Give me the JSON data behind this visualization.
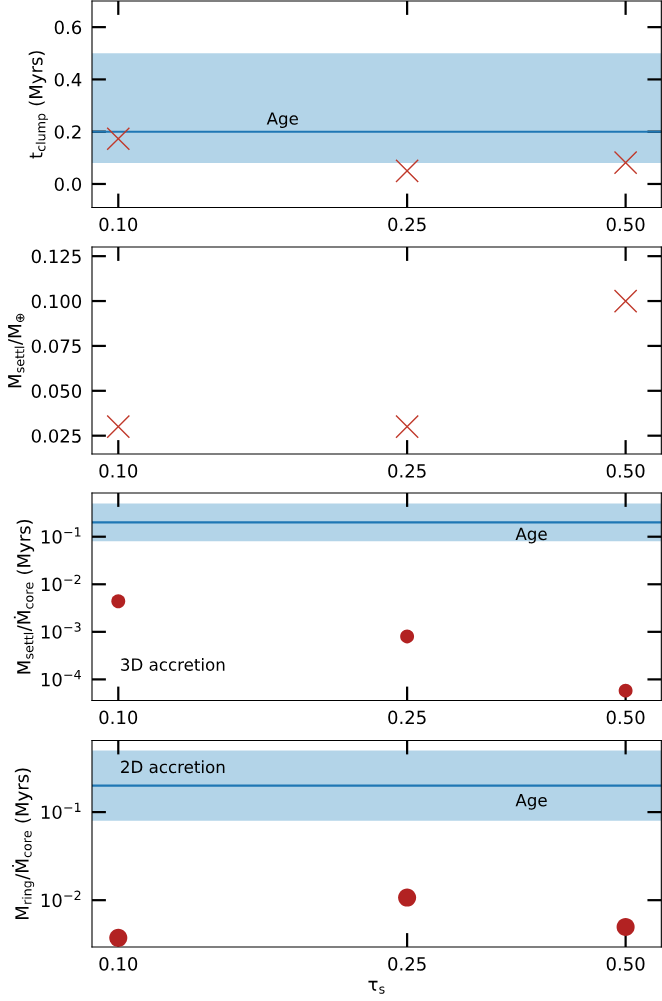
{
  "chart_data": [
    {
      "type": "scatter",
      "ylabel": "t$_{clump}$ (Myrs)",
      "log": "x",
      "marker": "cross",
      "legend": false,
      "grid": false,
      "x": [
        0.1,
        0.25,
        0.5
      ],
      "series": [
        {
          "color": "#c0392b",
          "values": [
            0.173,
            0.05,
            0.082
          ]
        }
      ],
      "xlim": [
        0.092,
        0.56
      ],
      "xticks": [
        {
          "value": 0.1,
          "label": "0.10"
        },
        {
          "value": 0.25,
          "label": "0.25"
        },
        {
          "value": 0.5,
          "label": "0.50"
        }
      ],
      "ylim": [
        -0.09,
        0.7
      ],
      "yticks": [
        {
          "value": 0.0,
          "label": "0.0"
        },
        {
          "value": 0.2,
          "label": "0.2"
        },
        {
          "value": 0.4,
          "label": "0.4"
        },
        {
          "value": 0.6,
          "label": "0.6"
        }
      ],
      "ref_lines": [
        {
          "axis": "y",
          "value": 0.2,
          "color": "#1f77b4",
          "label": "Age"
        }
      ],
      "bands": [
        {
          "axis": "y",
          "from": 0.08,
          "to": 0.5,
          "color": "#b3d4e8"
        }
      ]
    },
    {
      "type": "scatter",
      "ylabel": "M$_{settl}$/M$_{⊕}$",
      "log": "x",
      "marker": "cross",
      "legend": false,
      "grid": false,
      "x": [
        0.1,
        0.25,
        0.5
      ],
      "series": [
        {
          "color": "#c0392b",
          "values": [
            0.03,
            0.03,
            0.1
          ]
        }
      ],
      "xlim": [
        0.092,
        0.56
      ],
      "xticks": [
        {
          "value": 0.1,
          "label": "0.10"
        },
        {
          "value": 0.25,
          "label": "0.25"
        },
        {
          "value": 0.5,
          "label": "0.50"
        }
      ],
      "ylim": [
        0.0148,
        0.1301
      ],
      "yticks": [
        0.025,
        {
          "value": 0.05,
          "label": "0.050"
        },
        0.075,
        {
          "value": 0.1,
          "label": "0.100"
        },
        0.125
      ]
    },
    {
      "type": "scatter",
      "ylabel": "M$_{settl}$/Ṁ$_{core}$ (Myrs)",
      "log": "xy",
      "marker": "circle",
      "legend": false,
      "grid": false,
      "x": [
        0.1,
        0.25,
        0.5
      ],
      "series": [
        {
          "color": "#b22222",
          "values": [
            0.0044,
            0.0008,
            5.8e-05
          ]
        }
      ],
      "xlim": [
        0.092,
        0.56
      ],
      "xticks": [
        {
          "value": 0.1,
          "label": "0.10"
        },
        {
          "value": 0.25,
          "label": "0.25"
        },
        {
          "value": 0.5,
          "label": "0.50"
        }
      ],
      "ylim": [
        3.6e-05,
        0.83
      ],
      "yticks": [
        {
          "value": 0.0001,
          "label": "10$^{−4}$"
        },
        {
          "value": 0.001,
          "label": "10$^{−3}$"
        },
        {
          "value": 0.01,
          "label": "10$^{−2}$"
        },
        {
          "value": 0.1,
          "label": "10$^{−1}$"
        }
      ],
      "ref_lines": [
        {
          "axis": "y",
          "value": 0.2,
          "color": "#1f77b4",
          "label": "Age"
        }
      ],
      "bands": [
        {
          "axis": "y",
          "from": 0.08,
          "to": 0.5,
          "color": "#b3d4e8"
        }
      ],
      "annotations": [
        "3D accretion"
      ]
    },
    {
      "type": "scatter",
      "ylabel": "M$_{ring}$/Ṁ$_{core}$ (Myrs)",
      "xlabel": "τ$_{s}$",
      "log": "xy",
      "marker": "circle",
      "legend": false,
      "grid": false,
      "x": [
        0.1,
        0.25,
        0.5
      ],
      "series": [
        {
          "color": "#b22222",
          "values": [
            0.00374,
            0.0107,
            0.00497
          ]
        }
      ],
      "xlim": [
        0.092,
        0.56
      ],
      "xticks": [
        {
          "value": 0.1,
          "label": "0.10"
        },
        {
          "value": 0.25,
          "label": "0.25"
        },
        {
          "value": 0.5,
          "label": "0.50"
        }
      ],
      "ylim": [
        0.00294,
        0.65
      ],
      "yticks": [
        {
          "value": 0.01,
          "label": "10$^{−2}$"
        },
        {
          "value": 0.1,
          "label": "10$^{−1}$"
        }
      ],
      "ref_lines": [
        {
          "axis": "y",
          "value": 0.2,
          "color": "#1f77b4",
          "label": "Age"
        }
      ],
      "bands": [
        {
          "axis": "y",
          "from": 0.08,
          "to": 0.5,
          "color": "#b3d4e8"
        }
      ],
      "annotations": [
        "2D accretion"
      ]
    }
  ]
}
